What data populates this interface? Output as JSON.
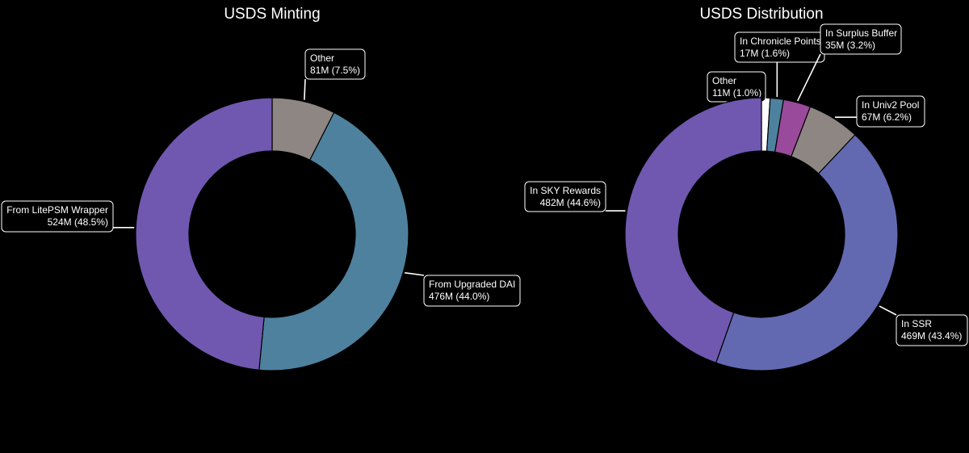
{
  "chart_data": [
    {
      "type": "pie",
      "style": "donut",
      "title": "USDS Minting",
      "slices": [
        {
          "label": "Other",
          "value_text": "81M (7.5%)",
          "value_millions": 81,
          "percent": 7.5,
          "color": "#8e8683"
        },
        {
          "label": "From Upgraded DAI",
          "value_text": "476M (44.0%)",
          "value_millions": 476,
          "percent": 44.0,
          "color": "#4e819d"
        },
        {
          "label": "From LitePSM Wrapper",
          "value_text": "524M (48.5%)",
          "value_millions": 524,
          "percent": 48.5,
          "color": "#7058b0"
        }
      ]
    },
    {
      "type": "pie",
      "style": "donut",
      "title": "USDS Distribution",
      "slices": [
        {
          "label": "Other",
          "value_text": "11M (1.0%)",
          "value_millions": 11,
          "percent": 1.0,
          "color": "#ffffff"
        },
        {
          "label": "In Chronicle Points",
          "value_text": "17M (1.6%)",
          "value_millions": 17,
          "percent": 1.6,
          "color": "#4e819d"
        },
        {
          "label": "In Surplus Buffer",
          "value_text": "35M (3.2%)",
          "value_millions": 35,
          "percent": 3.2,
          "color": "#9a4a9a"
        },
        {
          "label": "In Univ2 Pool",
          "value_text": "67M (6.2%)",
          "value_millions": 67,
          "percent": 6.2,
          "color": "#8e8683"
        },
        {
          "label": "In SSR",
          "value_text": "469M (43.4%)",
          "value_millions": 469,
          "percent": 43.4,
          "color": "#6369b0"
        },
        {
          "label": "In SKY Rewards",
          "value_text": "482M (44.6%)",
          "value_millions": 482,
          "percent": 44.6,
          "color": "#7058b0"
        }
      ]
    }
  ]
}
